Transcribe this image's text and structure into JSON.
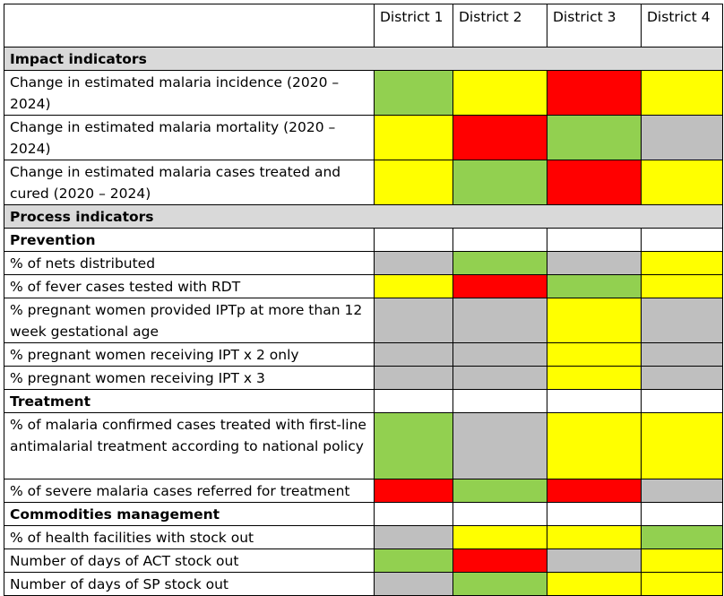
{
  "table": {
    "header": [
      "",
      "District 1",
      "District 2",
      "District 3",
      "District 4"
    ],
    "colors": {
      "green": "#92d050",
      "yellow": "#ffff00",
      "red": "#ff0000",
      "grey": "#bfbfbf",
      "white": "#ffffff",
      "section": "#d9d9d9"
    },
    "rows": [
      {
        "type": "section",
        "label": "Impact indicators"
      },
      {
        "type": "data",
        "label": "Change in estimated malaria incidence (2020 – 2024)",
        "cells": [
          "green",
          "yellow",
          "red",
          "yellow"
        ],
        "h": 46
      },
      {
        "type": "data",
        "label": "Change in estimated malaria mortality (2020 – 2024)",
        "cells": [
          "yellow",
          "red",
          "green",
          "grey"
        ],
        "h": 50
      },
      {
        "type": "data",
        "label": "Change in estimated malaria cases treated and cured (2020 – 2024)",
        "cells": [
          "yellow",
          "green",
          "red",
          "yellow"
        ],
        "h": 48
      },
      {
        "type": "section",
        "label": "Process indicators"
      },
      {
        "type": "sub",
        "label": "Prevention"
      },
      {
        "type": "data",
        "label": "% of nets distributed",
        "cells": [
          "grey",
          "green",
          "grey",
          "yellow"
        ]
      },
      {
        "type": "data",
        "label": "% of fever cases tested with RDT",
        "cells": [
          "yellow",
          "red",
          "green",
          "yellow"
        ]
      },
      {
        "type": "data",
        "label": "% pregnant women provided IPTp at more than 12 week gestational age",
        "cells": [
          "grey",
          "grey",
          "yellow",
          "grey"
        ],
        "h": 48
      },
      {
        "type": "data",
        "label": "% pregnant women receiving IPT x 2 only",
        "cells": [
          "grey",
          "grey",
          "yellow",
          "grey"
        ]
      },
      {
        "type": "data",
        "label": "% pregnant women receiving IPT x 3",
        "cells": [
          "grey",
          "grey",
          "yellow",
          "grey"
        ]
      },
      {
        "type": "sub",
        "label": "Treatment"
      },
      {
        "type": "data",
        "label": "% of malaria confirmed cases treated with first-line antimalarial treatment according to national policy",
        "cells": [
          "green",
          "grey",
          "yellow",
          "yellow"
        ],
        "h": 74
      },
      {
        "type": "data",
        "label": "% of severe malaria cases referred for treatment",
        "cells": [
          "red",
          "green",
          "red",
          "grey"
        ]
      },
      {
        "type": "sub",
        "label": "Commodities management"
      },
      {
        "type": "data",
        "label": "% of health facilities with stock out",
        "cells": [
          "grey",
          "yellow",
          "yellow",
          "green"
        ]
      },
      {
        "type": "data",
        "label": "Number of days of ACT stock out",
        "cells": [
          "green",
          "red",
          "grey",
          "yellow"
        ]
      },
      {
        "type": "data",
        "label": "Number of days of SP stock out",
        "cells": [
          "grey",
          "green",
          "yellow",
          "yellow"
        ]
      }
    ]
  }
}
